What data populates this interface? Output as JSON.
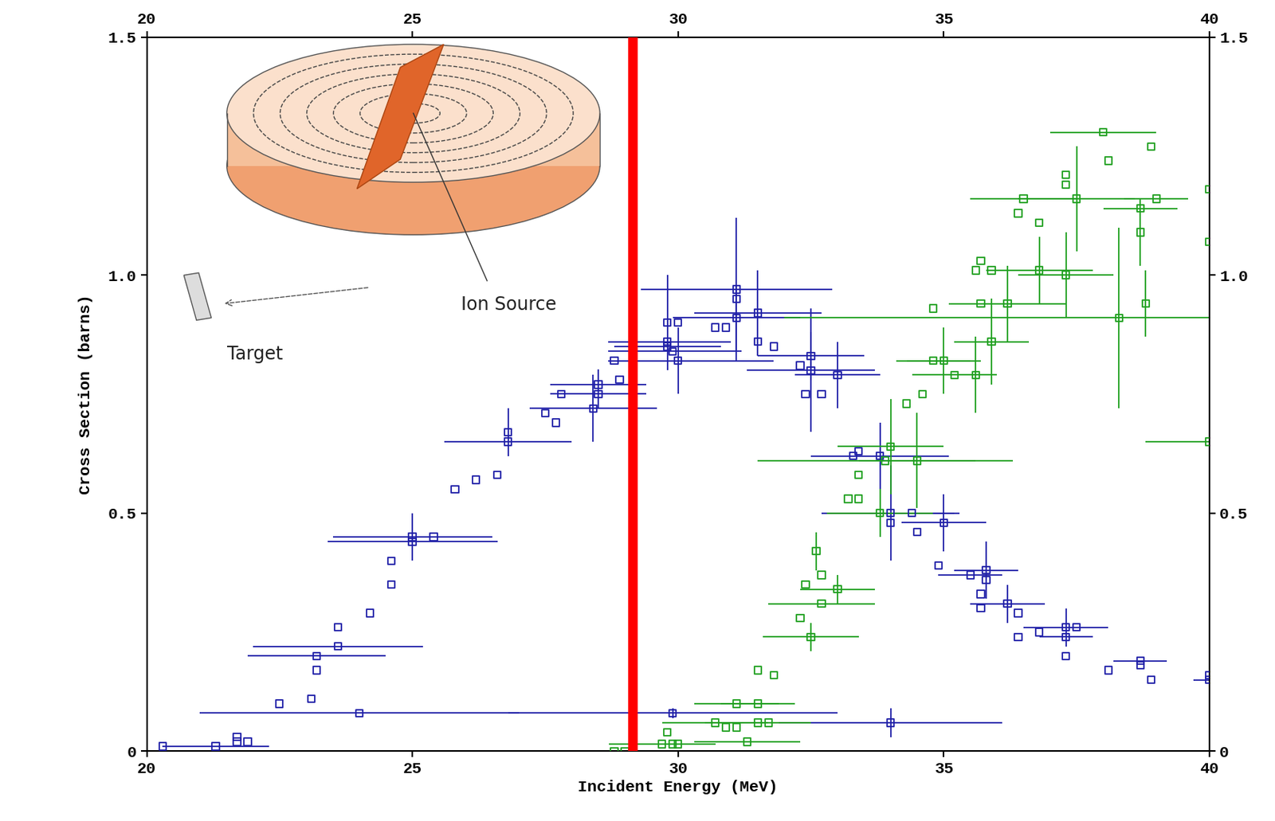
{
  "chart_data": {
    "type": "scatter",
    "x_label": "Incident Energy (MeV)",
    "y_label": "Cross Section (barns)",
    "xlim": [
      20,
      40
    ],
    "xticks": [
      20,
      25,
      30,
      35,
      40
    ],
    "ylim": [
      0,
      1.5
    ],
    "yticks": [
      0,
      0.5,
      {
        "value": 1,
        "label": "1.0"
      },
      1.5
    ],
    "grid": false,
    "marker": "square",
    "annotations": [
      "Ion Source",
      "Target"
    ],
    "marker_line": {
      "x": 29.15,
      "color": "#ff0000"
    },
    "series": [
      {
        "color": "#2020a8",
        "x": [
          20.3,
          21.3,
          21.7,
          21.7,
          21.9,
          22.5,
          23.1,
          23.2,
          23.2,
          23.6,
          23.6,
          24.0,
          29.9,
          24.2,
          24.6,
          24.6,
          25.0,
          25.0,
          25.4,
          25.8,
          26.2,
          26.6,
          26.8,
          26.8,
          27.5,
          27.7,
          27.8,
          28.4,
          28.5,
          28.5,
          28.8,
          28.9,
          29.8,
          29.8,
          29.8,
          29.9,
          30.0,
          30.0,
          30.7,
          30.9,
          31.1,
          31.1,
          31.1,
          31.5,
          31.5,
          31.8,
          32.3,
          32.4,
          32.5,
          32.5,
          32.7,
          33.0,
          33.3,
          33.4,
          33.8,
          34.0,
          34.0,
          34.0,
          34.4,
          34.5,
          34.9,
          35.0,
          35.5,
          35.7,
          35.7,
          35.8,
          35.8,
          36.2,
          36.4,
          36.4,
          36.8,
          37.3,
          37.3,
          37.3,
          37.5,
          38.1,
          38.7,
          38.7,
          38.9,
          40.0,
          40.0
        ],
        "values": [
          0.01,
          0.01,
          0.02,
          0.03,
          0.02,
          0.1,
          0.11,
          0.2,
          0.17,
          0.26,
          0.22,
          0.08,
          0.08,
          0.29,
          0.4,
          0.35,
          0.45,
          0.44,
          0.45,
          0.55,
          0.57,
          0.58,
          0.67,
          0.65,
          0.71,
          0.69,
          0.75,
          0.72,
          0.77,
          0.75,
          0.82,
          0.78,
          0.9,
          0.86,
          0.85,
          0.84,
          0.9,
          0.82,
          0.89,
          0.89,
          0.97,
          0.95,
          0.91,
          0.92,
          0.86,
          0.85,
          0.81,
          0.75,
          0.83,
          0.8,
          0.75,
          0.79,
          0.62,
          0.63,
          0.62,
          0.5,
          0.48,
          0.06,
          0.5,
          0.46,
          0.39,
          0.48,
          0.37,
          0.33,
          0.3,
          0.38,
          0.36,
          0.31,
          0.29,
          0.24,
          0.25,
          0.26,
          0.24,
          0.2,
          0.26,
          0.17,
          0.19,
          0.18,
          0.15,
          0.15,
          0.16
        ],
        "xerr": [
          null,
          1.0,
          null,
          null,
          null,
          null,
          null,
          1.3,
          null,
          null,
          1.6,
          3.0,
          3.1,
          null,
          null,
          null,
          1.5,
          1.6,
          null,
          null,
          null,
          null,
          null,
          1.2,
          null,
          null,
          null,
          1.2,
          0.9,
          0.9,
          null,
          null,
          null,
          1.2,
          1.0,
          1.3,
          null,
          1.8,
          null,
          null,
          1.8,
          null,
          1.2,
          1.2,
          null,
          null,
          null,
          null,
          1.0,
          1.2,
          null,
          0.8,
          null,
          null,
          1.3,
          1.3,
          null,
          2.1,
          0.8,
          null,
          null,
          0.8,
          0.6,
          null,
          null,
          0.6,
          null,
          0.7,
          null,
          null,
          null,
          0.8,
          0.5,
          null,
          null,
          null,
          0.5,
          null,
          null,
          0.3,
          null
        ],
        "yerr": [
          null,
          null,
          null,
          null,
          null,
          null,
          null,
          null,
          null,
          null,
          null,
          null,
          0.01,
          null,
          null,
          null,
          0.05,
          null,
          null,
          null,
          null,
          null,
          0.05,
          null,
          null,
          null,
          null,
          0.07,
          0.05,
          null,
          null,
          null,
          0.1,
          null,
          null,
          null,
          null,
          0.07,
          null,
          null,
          0.15,
          null,
          0.07,
          0.09,
          null,
          null,
          null,
          null,
          0.05,
          0.13,
          null,
          0.07,
          null,
          null,
          0.07,
          0.1,
          null,
          0.03,
          null,
          null,
          null,
          0.06,
          null,
          null,
          null,
          0.06,
          null,
          0.04,
          null,
          null,
          null,
          0.04,
          null,
          null,
          null,
          null,
          null,
          null,
          null,
          0.03,
          null
        ]
      },
      {
        "color": "#20a020",
        "x": [
          28.8,
          29.0,
          29.7,
          29.8,
          29.9,
          30.0,
          30.7,
          30.9,
          31.1,
          31.1,
          31.3,
          31.5,
          31.5,
          31.7,
          31.5,
          31.8,
          32.3,
          32.4,
          32.5,
          32.6,
          32.7,
          32.7,
          33.0,
          33.2,
          33.4,
          33.4,
          33.9,
          34.0,
          34.3,
          34.5,
          33.8,
          34.6,
          34.8,
          34.8,
          35.0,
          35.2,
          35.6,
          35.6,
          35.7,
          35.7,
          35.9,
          35.9,
          36.2,
          36.4,
          36.5,
          36.8,
          36.8,
          37.3,
          37.3,
          37.5,
          37.3,
          38.0,
          38.1,
          38.3,
          38.7,
          38.7,
          38.8,
          38.9,
          39.0,
          40.0,
          40.0,
          40.0
        ],
        "values": [
          0.0,
          0.0,
          0.015,
          0.04,
          0.015,
          0.015,
          0.06,
          0.05,
          0.1,
          0.05,
          0.02,
          0.1,
          0.06,
          0.06,
          0.17,
          0.16,
          0.28,
          0.35,
          0.24,
          0.42,
          0.37,
          0.31,
          0.34,
          0.53,
          0.58,
          0.53,
          0.61,
          0.64,
          0.73,
          0.61,
          0.5,
          0.75,
          0.82,
          0.93,
          0.82,
          0.79,
          0.79,
          1.01,
          1.03,
          0.94,
          1.01,
          0.86,
          0.94,
          1.13,
          1.16,
          1.11,
          1.01,
          1.21,
          1.19,
          1.16,
          1.0,
          1.3,
          1.24,
          0.91,
          1.14,
          1.09,
          0.94,
          1.27,
          1.16,
          1.18,
          1.07,
          0.65
        ],
        "xerr": [
          null,
          null,
          1.0,
          null,
          null,
          null,
          1.0,
          null,
          0.8,
          null,
          1.0,
          0.7,
          1.0,
          null,
          null,
          null,
          null,
          null,
          0.9,
          null,
          null,
          1.0,
          0.7,
          null,
          null,
          null,
          2.4,
          1.0,
          null,
          1.1,
          1.0,
          null,
          0.7,
          null,
          0.7,
          0.8,
          null,
          null,
          null,
          null,
          null,
          0.7,
          1.1,
          null,
          1.0,
          null,
          1.0,
          null,
          null,
          1.1,
          0.9,
          1.0,
          null,
          6.3,
          0.7,
          null,
          null,
          null,
          0.6,
          null,
          null,
          1.2
        ],
        "yerr": [
          null,
          null,
          null,
          null,
          null,
          null,
          null,
          null,
          null,
          null,
          null,
          null,
          null,
          null,
          null,
          null,
          null,
          null,
          0.03,
          0.04,
          null,
          null,
          0.03,
          null,
          null,
          null,
          null,
          0.1,
          null,
          0.1,
          0.05,
          null,
          null,
          null,
          0.07,
          null,
          0.08,
          null,
          null,
          null,
          null,
          0.09,
          0.08,
          null,
          null,
          null,
          0.07,
          null,
          null,
          0.11,
          0.09,
          null,
          null,
          0.19,
          null,
          0.07,
          0.07,
          null,
          null,
          0.1,
          0.08,
          null
        ]
      }
    ]
  }
}
